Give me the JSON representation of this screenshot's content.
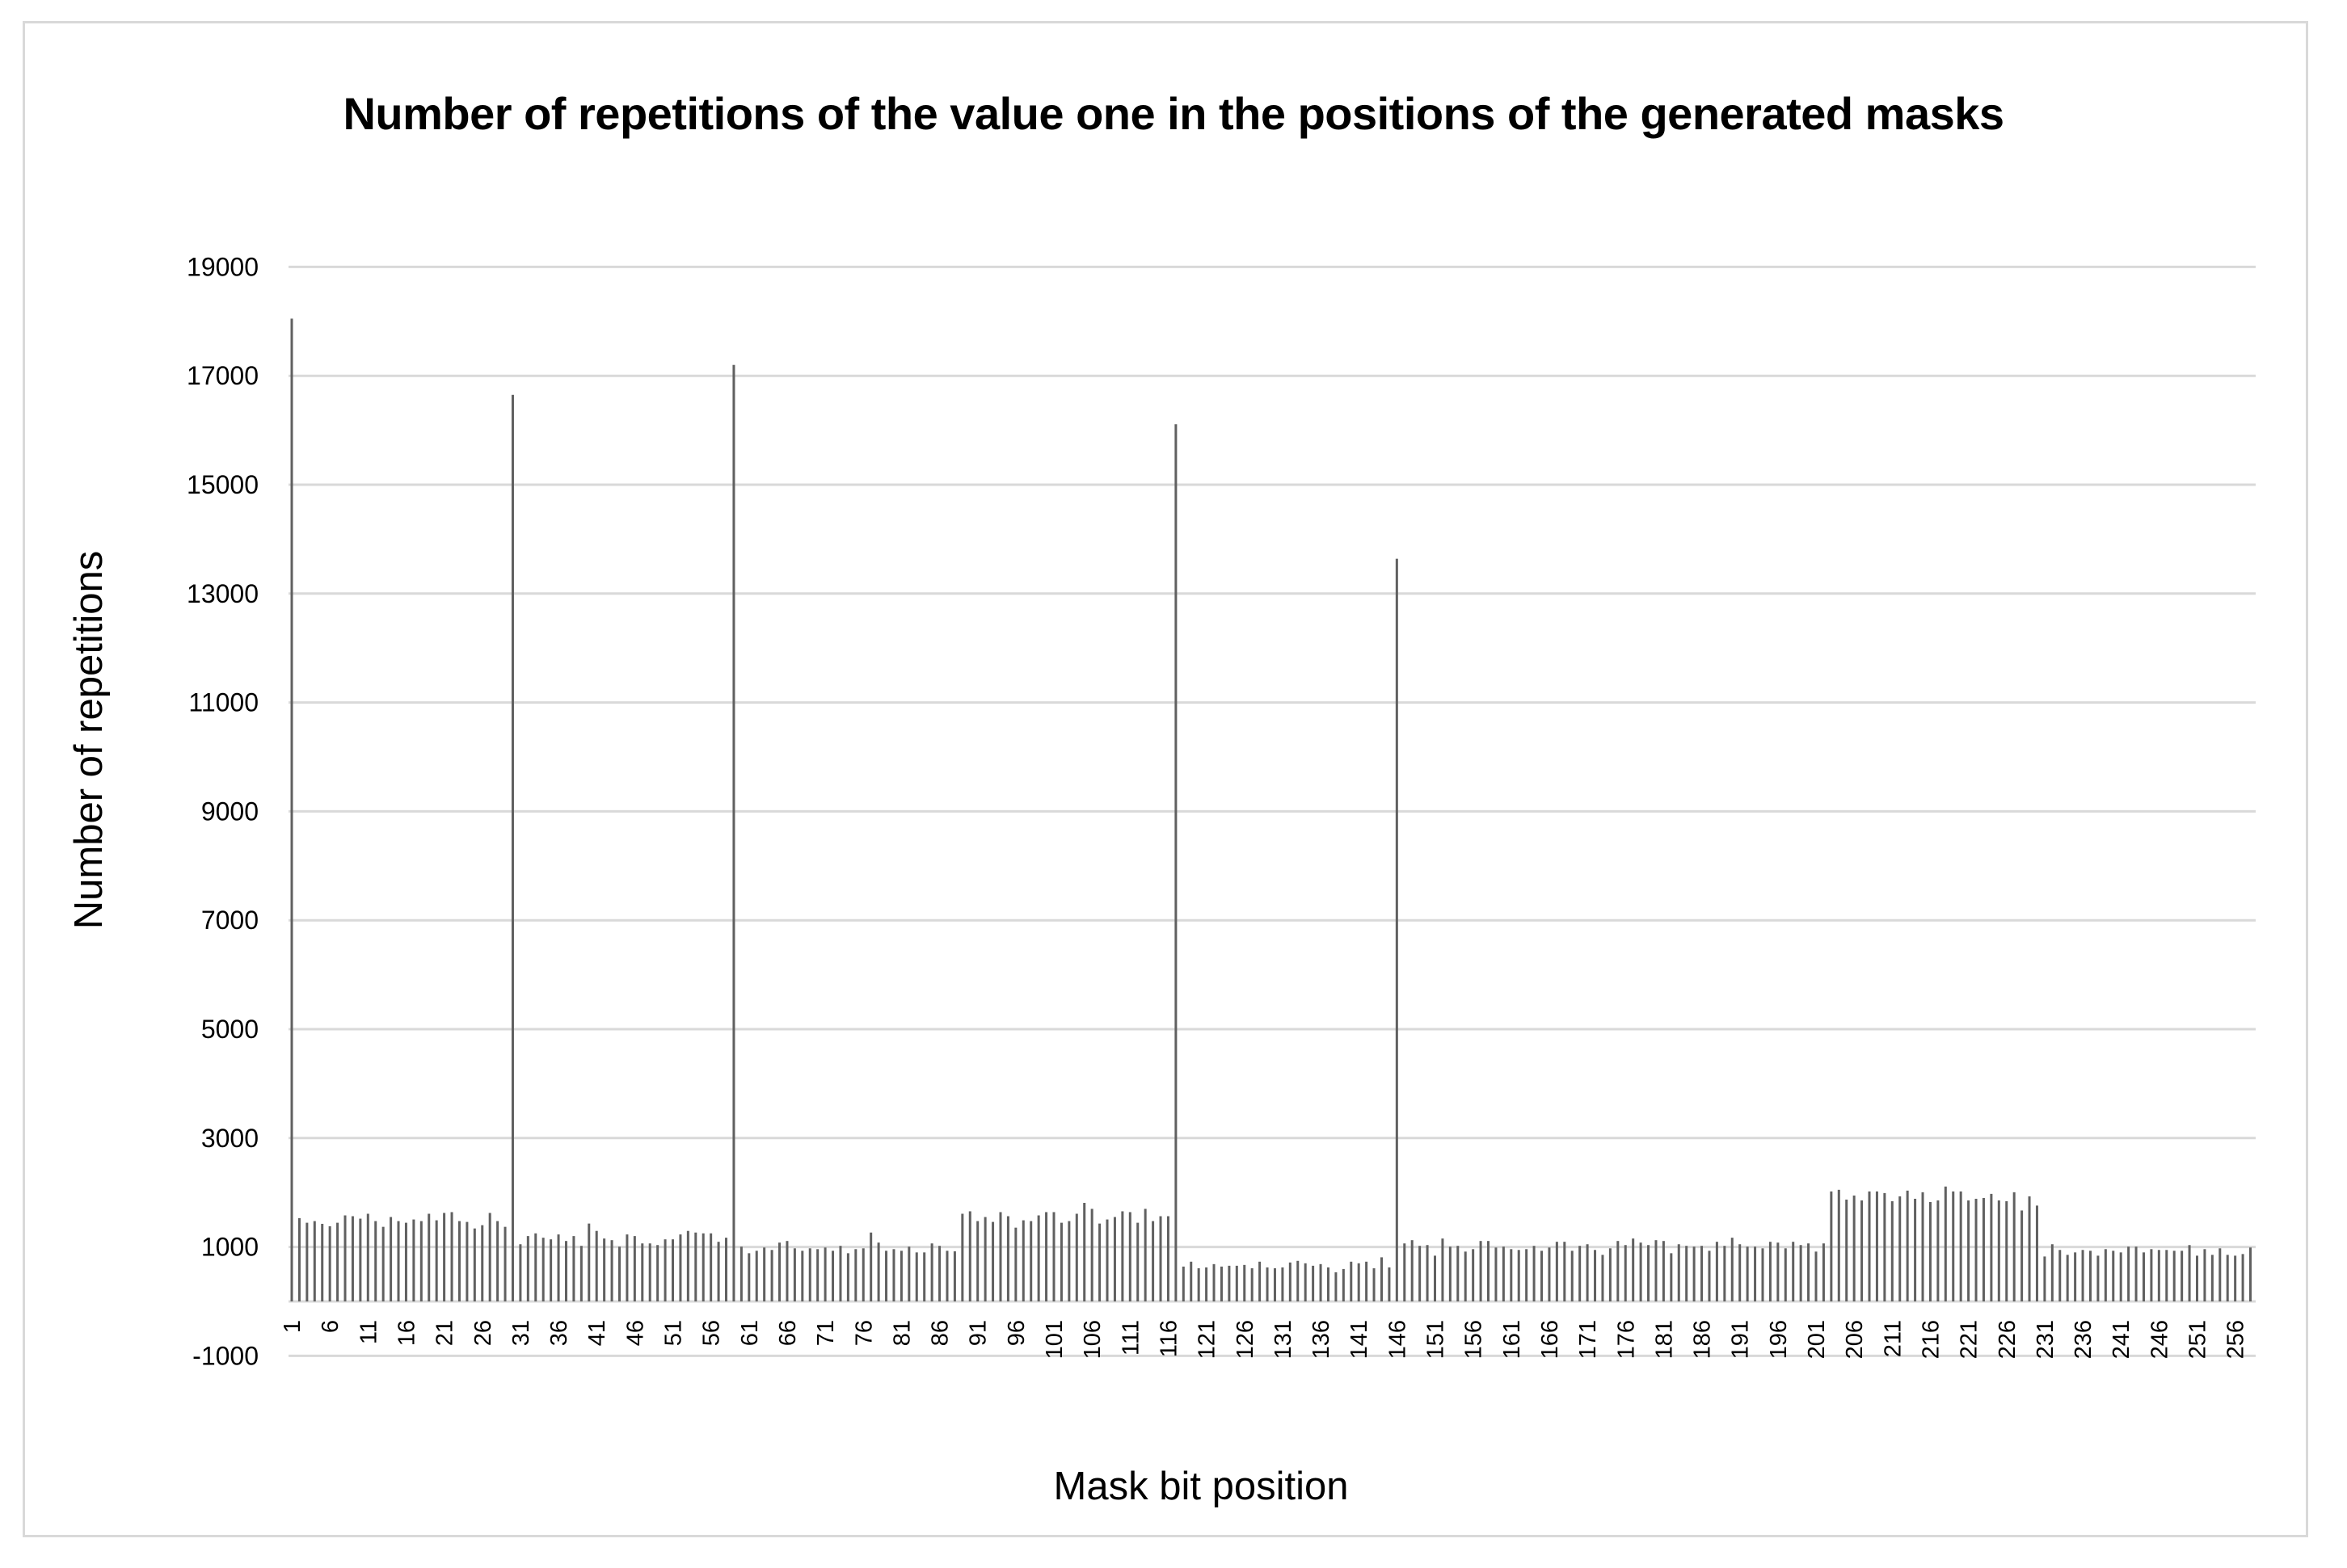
{
  "chart": {
    "title": "Number of repetitions of the value one in the positions of the generated masks",
    "y_axis_title": "Number of repetitions",
    "x_axis_title": "Mask bit position"
  },
  "colors": {
    "bar": "#606060",
    "gridline": "#d9d9d9",
    "frame": "#d9d9d9",
    "text": "#000000"
  },
  "chart_data": {
    "type": "bar",
    "title": "Number of repetitions of the value one in the positions of the generated masks",
    "xlabel": "Mask bit position",
    "ylabel": "Number of repetitions",
    "ylim": [
      -1000,
      19000
    ],
    "y_ticks": [
      -1000,
      1000,
      3000,
      5000,
      7000,
      9000,
      11000,
      13000,
      15000,
      17000,
      19000
    ],
    "x_tick_labels": [
      "1",
      "6",
      "11",
      "16",
      "21",
      "26",
      "31",
      "36",
      "41",
      "46",
      "51",
      "56",
      "61",
      "66",
      "71",
      "76",
      "81",
      "86",
      "91",
      "96",
      "101",
      "106",
      "111",
      "116",
      "121",
      "126",
      "131",
      "136",
      "141",
      "146",
      "151",
      "156",
      "161",
      "166",
      "171",
      "176",
      "181",
      "186",
      "191",
      "196",
      "201",
      "206",
      "211",
      "216",
      "221",
      "226",
      "231",
      "236",
      "241",
      "246",
      "251",
      "256"
    ],
    "grid": true,
    "legend": "none",
    "categories": [
      1,
      2,
      3,
      4,
      5,
      6,
      7,
      8,
      9,
      10,
      11,
      12,
      13,
      14,
      15,
      16,
      17,
      18,
      19,
      20,
      21,
      22,
      23,
      24,
      25,
      26,
      27,
      28,
      29,
      30,
      31,
      32,
      33,
      34,
      35,
      36,
      37,
      38,
      39,
      40,
      41,
      42,
      43,
      44,
      45,
      46,
      47,
      48,
      49,
      50,
      51,
      52,
      53,
      54,
      55,
      56,
      57,
      58,
      59,
      60,
      61,
      62,
      63,
      64,
      65,
      66,
      67,
      68,
      69,
      70,
      71,
      72,
      73,
      74,
      75,
      76,
      77,
      78,
      79,
      80,
      81,
      82,
      83,
      84,
      85,
      86,
      87,
      88,
      89,
      90,
      91,
      92,
      93,
      94,
      95,
      96,
      97,
      98,
      99,
      100,
      101,
      102,
      103,
      104,
      105,
      106,
      107,
      108,
      109,
      110,
      111,
      112,
      113,
      114,
      115,
      116,
      117,
      118,
      119,
      120,
      121,
      122,
      123,
      124,
      125,
      126,
      127,
      128,
      129,
      130,
      131,
      132,
      133,
      134,
      135,
      136,
      137,
      138,
      139,
      140,
      141,
      142,
      143,
      144,
      145,
      146,
      147,
      148,
      149,
      150,
      151,
      152,
      153,
      154,
      155,
      156,
      157,
      158,
      159,
      160,
      161,
      162,
      163,
      164,
      165,
      166,
      167,
      168,
      169,
      170,
      171,
      172,
      173,
      174,
      175,
      176,
      177,
      178,
      179,
      180,
      181,
      182,
      183,
      184,
      185,
      186,
      187,
      188,
      189,
      190,
      191,
      192,
      193,
      194,
      195,
      196,
      197,
      198,
      199,
      200,
      201,
      202,
      203,
      204,
      205,
      206,
      207,
      208,
      209,
      210,
      211,
      212,
      213,
      214,
      215,
      216,
      217,
      218,
      219,
      220,
      221,
      222,
      223,
      224,
      225,
      226,
      227,
      228,
      229,
      230,
      231,
      232,
      233,
      234,
      235,
      236,
      237,
      238,
      239,
      240,
      241,
      242,
      243,
      244,
      245,
      246,
      247,
      248,
      249,
      250,
      251,
      252,
      253,
      254,
      255,
      256,
      257,
      258
    ],
    "values": [
      18050,
      1530,
      1445,
      1475,
      1425,
      1380,
      1445,
      1580,
      1565,
      1520,
      1610,
      1475,
      1370,
      1550,
      1475,
      1445,
      1505,
      1475,
      1610,
      1490,
      1625,
      1640,
      1475,
      1460,
      1340,
      1400,
      1625,
      1475,
      1370,
      16650,
      1050,
      1200,
      1250,
      1170,
      1140,
      1230,
      1110,
      1200,
      1020,
      1430,
      1295,
      1155,
      1125,
      1005,
      1230,
      1200,
      1065,
      1065,
      1035,
      1140,
      1140,
      1230,
      1295,
      1265,
      1250,
      1250,
      1095,
      1170,
      17200,
      1005,
      885,
      930,
      990,
      945,
      1080,
      1110,
      975,
      930,
      975,
      960,
      990,
      930,
      1020,
      885,
      960,
      975,
      1265,
      1080,
      930,
      960,
      930,
      1005,
      900,
      900,
      1065,
      1020,
      930,
      920,
      1610,
      1655,
      1475,
      1550,
      1460,
      1640,
      1565,
      1355,
      1490,
      1475,
      1580,
      1640,
      1640,
      1445,
      1475,
      1610,
      1810,
      1700,
      1430,
      1505,
      1550,
      1655,
      1640,
      1445,
      1700,
      1475,
      1565,
      1565,
      16110,
      640,
      730,
      610,
      625,
      685,
      640,
      655,
      655,
      670,
      610,
      730,
      625,
      610,
      625,
      715,
      745,
      700,
      655,
      685,
      625,
      535,
      595,
      730,
      700,
      730,
      610,
      810,
      625,
      13640,
      1065,
      1125,
      1020,
      1035,
      840,
      1155,
      1005,
      1020,
      915,
      960,
      1110,
      1110,
      990,
      1005,
      960,
      945,
      960,
      1020,
      930,
      990,
      1095,
      1095,
      930,
      1020,
      1050,
      945,
      855,
      975,
      1110,
      1035,
      1155,
      1080,
      1035,
      1125,
      1110,
      885,
      1050,
      1020,
      1005,
      1020,
      930,
      1095,
      1020,
      1170,
      1050,
      1005,
      1005,
      975,
      1095,
      1080,
      975,
      1095,
      1035,
      1065,
      915,
      1065,
      2020,
      2050,
      1870,
      1945,
      1855,
      2020,
      2020,
      1990,
      1840,
      1930,
      2035,
      1885,
      2005,
      1825,
      1855,
      2110,
      2020,
      2020,
      1855,
      1885,
      1900,
      1975,
      1855,
      1840,
      2005,
      1670,
      1930,
      1760,
      825,
      1050,
      945,
      855,
      900,
      945,
      930,
      840,
      960,
      930,
      900,
      1005,
      1005,
      900,
      960,
      945,
      945,
      930,
      930,
      1035,
      840,
      960,
      855,
      975,
      855,
      840,
      870,
      990
    ]
  }
}
